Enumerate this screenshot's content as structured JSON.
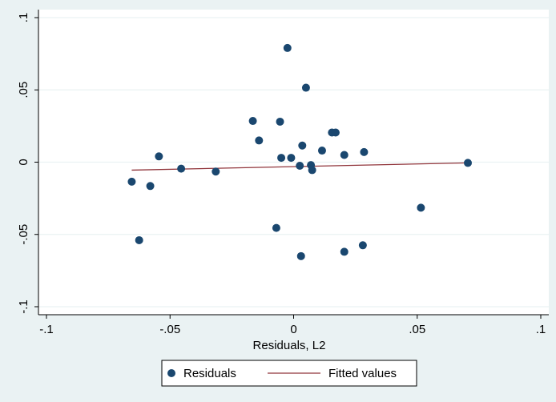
{
  "chart_data": {
    "type": "scatter",
    "xlabel": "Residuals, L2",
    "ylabel": "",
    "xlim": [
      -0.1,
      0.1
    ],
    "ylim": [
      -0.1,
      0.1
    ],
    "grid": true,
    "legend_position": "bottom",
    "x_ticks": [
      {
        "value": -0.1,
        "label": "-.1"
      },
      {
        "value": -0.05,
        "label": "-.05"
      },
      {
        "value": 0,
        "label": "0"
      },
      {
        "value": 0.05,
        "label": ".05"
      },
      {
        "value": 0.1,
        "label": ".1"
      }
    ],
    "y_ticks": [
      {
        "value": -0.1,
        "label": "-.1"
      },
      {
        "value": -0.05,
        "label": "-.05"
      },
      {
        "value": 0,
        "label": "0"
      },
      {
        "value": 0.05,
        "label": ".05"
      },
      {
        "value": 0.1,
        "label": ".1"
      }
    ],
    "series": [
      {
        "name": "Residuals",
        "kind": "scatter",
        "color": "#1a476f",
        "points": [
          {
            "x": -0.0655,
            "y": -0.0135
          },
          {
            "x": -0.0625,
            "y": -0.054
          },
          {
            "x": -0.058,
            "y": -0.0165
          },
          {
            "x": -0.0545,
            "y": 0.004
          },
          {
            "x": -0.0455,
            "y": -0.0045
          },
          {
            "x": -0.0315,
            "y": -0.0065
          },
          {
            "x": -0.0165,
            "y": 0.0285
          },
          {
            "x": -0.014,
            "y": 0.015
          },
          {
            "x": -0.007,
            "y": -0.0455
          },
          {
            "x": -0.0055,
            "y": 0.028
          },
          {
            "x": -0.005,
            "y": 0.003
          },
          {
            "x": -0.0025,
            "y": 0.079
          },
          {
            "x": -0.001,
            "y": 0.003
          },
          {
            "x": 0.0025,
            "y": -0.0025
          },
          {
            "x": 0.003,
            "y": -0.065
          },
          {
            "x": 0.0035,
            "y": 0.0115
          },
          {
            "x": 0.005,
            "y": 0.0515
          },
          {
            "x": 0.007,
            "y": -0.002
          },
          {
            "x": 0.0075,
            "y": -0.0055
          },
          {
            "x": 0.0115,
            "y": 0.008
          },
          {
            "x": 0.0155,
            "y": 0.0205
          },
          {
            "x": 0.017,
            "y": 0.0205
          },
          {
            "x": 0.0205,
            "y": -0.062
          },
          {
            "x": 0.0205,
            "y": 0.005
          },
          {
            "x": 0.028,
            "y": -0.0575
          },
          {
            "x": 0.0285,
            "y": 0.007
          },
          {
            "x": 0.0515,
            "y": -0.0315
          },
          {
            "x": 0.0705,
            "y": -0.0005
          }
        ]
      },
      {
        "name": "Fitted values",
        "kind": "line",
        "color": "#90353b",
        "x": [
          -0.0655,
          0.0705
        ],
        "y": [
          -0.0055,
          -0.0005
        ]
      }
    ]
  }
}
